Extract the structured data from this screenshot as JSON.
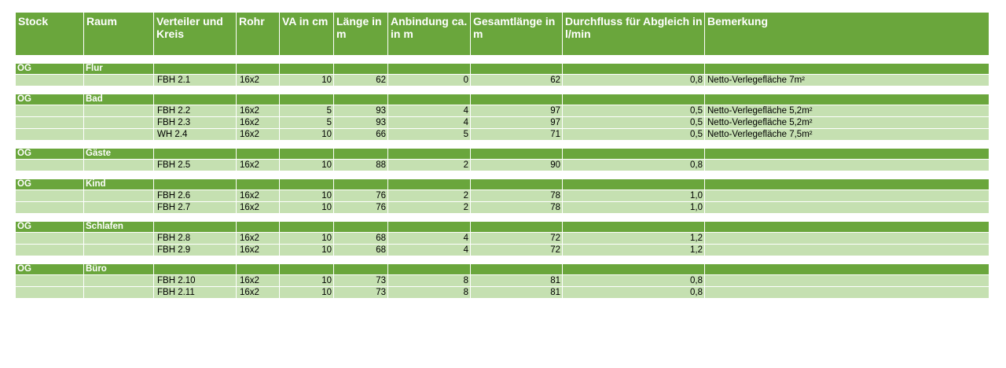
{
  "columns": [
    "Stock",
    "Raum",
    "Verteiler und Kreis",
    "Rohr",
    "VA in cm",
    "Länge in m",
    "Anbindung ca. in m",
    "Gesamtlänge in m",
    "Durchfluss  für Abgleich in l/min",
    "Bemerkung"
  ],
  "colors": {
    "header_green": "#6aa63c",
    "row_green": "#c5e0b1"
  },
  "groups": [
    {
      "stock": "OG",
      "raum": "Flur",
      "rows": [
        {
          "kreis": "FBH 2.1",
          "rohr": "16x2",
          "va": "10",
          "laenge": "62",
          "anbindung": "0",
          "gesamt": "62",
          "durchfluss": "0,8",
          "bemerkung": "Netto-Verlegefläche 7m²"
        }
      ]
    },
    {
      "stock": "OG",
      "raum": "Bad",
      "rows": [
        {
          "kreis": "FBH 2.2",
          "rohr": "16x2",
          "va": "5",
          "laenge": "93",
          "anbindung": "4",
          "gesamt": "97",
          "durchfluss": "0,5",
          "bemerkung": "Netto-Verlegefläche 5,2m²"
        },
        {
          "kreis": "FBH 2.3",
          "rohr": "16x2",
          "va": "5",
          "laenge": "93",
          "anbindung": "4",
          "gesamt": "97",
          "durchfluss": "0,5",
          "bemerkung": "Netto-Verlegefläche 5,2m²"
        },
        {
          "kreis": "WH 2.4",
          "rohr": "16x2",
          "va": "10",
          "laenge": "66",
          "anbindung": "5",
          "gesamt": "71",
          "durchfluss": "0,5",
          "bemerkung": "Netto-Verlegefläche 7,5m²"
        }
      ]
    },
    {
      "stock": "OG",
      "raum": "Gäste",
      "rows": [
        {
          "kreis": "FBH 2.5",
          "rohr": "16x2",
          "va": "10",
          "laenge": "88",
          "anbindung": "2",
          "gesamt": "90",
          "durchfluss": "0,8",
          "bemerkung": ""
        }
      ]
    },
    {
      "stock": "OG",
      "raum": "Kind",
      "rows": [
        {
          "kreis": "FBH 2.6",
          "rohr": "16x2",
          "va": "10",
          "laenge": "76",
          "anbindung": "2",
          "gesamt": "78",
          "durchfluss": "1,0",
          "bemerkung": ""
        },
        {
          "kreis": "FBH 2.7",
          "rohr": "16x2",
          "va": "10",
          "laenge": "76",
          "anbindung": "2",
          "gesamt": "78",
          "durchfluss": "1,0",
          "bemerkung": ""
        }
      ]
    },
    {
      "stock": "OG",
      "raum": "Schlafen",
      "rows": [
        {
          "kreis": "FBH 2.8",
          "rohr": "16x2",
          "va": "10",
          "laenge": "68",
          "anbindung": "4",
          "gesamt": "72",
          "durchfluss": "1,2",
          "bemerkung": ""
        },
        {
          "kreis": "FBH 2.9",
          "rohr": "16x2",
          "va": "10",
          "laenge": "68",
          "anbindung": "4",
          "gesamt": "72",
          "durchfluss": "1,2",
          "bemerkung": ""
        }
      ]
    },
    {
      "stock": "OG",
      "raum": "Büro",
      "rows": [
        {
          "kreis": "FBH 2.10",
          "rohr": "16x2",
          "va": "10",
          "laenge": "73",
          "anbindung": "8",
          "gesamt": "81",
          "durchfluss": "0,8",
          "bemerkung": ""
        },
        {
          "kreis": "FBH 2.11",
          "rohr": "16x2",
          "va": "10",
          "laenge": "73",
          "anbindung": "8",
          "gesamt": "81",
          "durchfluss": "0,8",
          "bemerkung": ""
        }
      ]
    }
  ]
}
